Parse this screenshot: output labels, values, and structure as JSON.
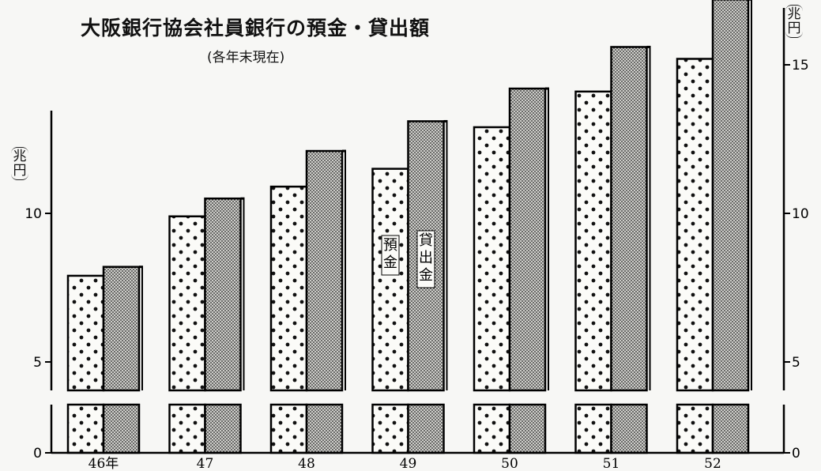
{
  "title": "大阪銀行協会社員銀行の預金・貸出額",
  "subtitle": "(各年末現在)",
  "unit_left": "兆円",
  "unit_right": "兆円",
  "chart_data": {
    "type": "bar",
    "categories": [
      "46年",
      "47",
      "48",
      "49",
      "50",
      "51",
      "52"
    ],
    "series": [
      {
        "name": "預金",
        "values": [
          7.9,
          9.9,
          10.9,
          11.5,
          12.9,
          14.1,
          15.2
        ],
        "pattern": "large-dots"
      },
      {
        "name": "貸出金",
        "values": [
          8.2,
          10.5,
          12.1,
          13.1,
          14.2,
          15.6,
          17.2
        ],
        "pattern": "fine-dots"
      }
    ],
    "ylim": [
      0,
      17.5
    ],
    "axis_break": [
      0.8,
      4.2
    ],
    "yticks": [
      0,
      5,
      10,
      15
    ],
    "right_yticks": [
      0,
      5,
      10,
      15
    ],
    "legend_placement": "inside bars of 49"
  }
}
